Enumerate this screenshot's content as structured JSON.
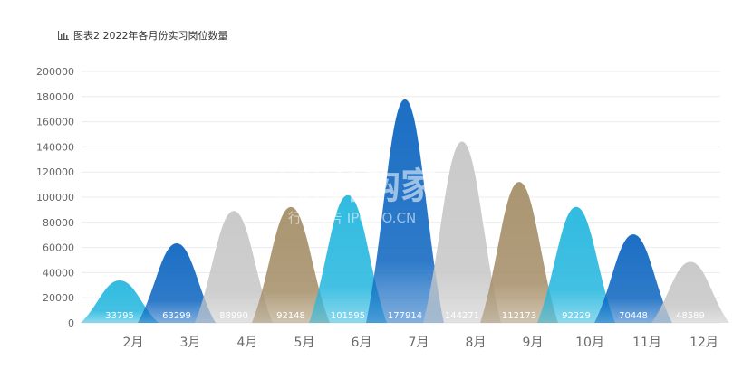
{
  "chart_data": {
    "type": "bar",
    "mark_shape": "peak",
    "title": "图表2 2022年各月份实习岗位数量",
    "categories": [
      "2月",
      "3月",
      "4月",
      "5月",
      "6月",
      "7月",
      "8月",
      "9月",
      "10月",
      "11月",
      "12月"
    ],
    "values": [
      33795,
      63299,
      88990,
      92148,
      101595,
      177914,
      144271,
      112173,
      92229,
      70448,
      48589
    ],
    "value_labels": [
      "33795",
      "63299",
      "88990",
      "92148",
      "101595",
      "177914",
      "144271",
      "112173",
      "92229",
      "70448",
      "48589"
    ],
    "ylim": [
      0,
      200000
    ],
    "yticks": [
      "0",
      "20000",
      "40000",
      "60000",
      "80000",
      "100000",
      "120000",
      "140000",
      "160000",
      "180000",
      "200000"
    ],
    "colors": [
      "#22b6de",
      "#0b64c0",
      "#c6c6c6",
      "#a48d66",
      "#22b6de",
      "#0b64c0",
      "#c6c6c6",
      "#a48d66",
      "#22b6de",
      "#0b64c0",
      "#c6c6c6"
    ],
    "grid": true,
    "legend": "none"
  },
  "watermark": {
    "brand": "并购家",
    "tagline": "行业报告 IPOIPO.CN"
  },
  "icon": "bar-chart-icon"
}
